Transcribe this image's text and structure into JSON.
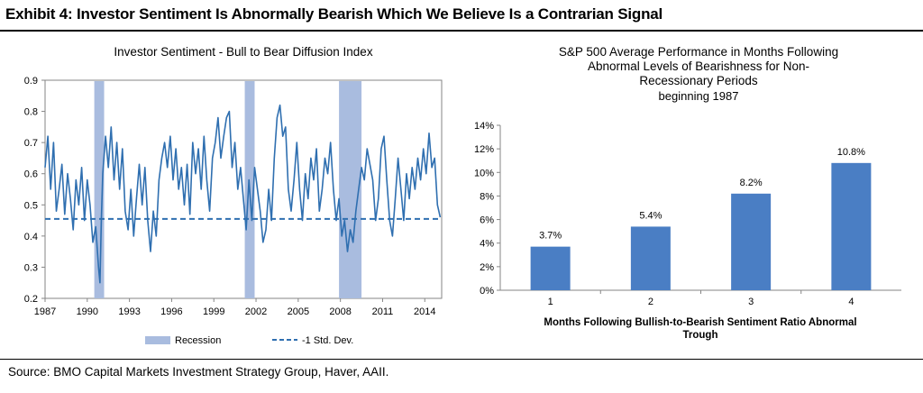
{
  "exhibit_title": "Exhibit 4: Investor Sentiment Is Abnormally Bearish Which We Believe Is a Contrarian Signal",
  "source": "Source: BMO Capital Markets Investment Strategy Group, Haver, AAII.",
  "colors": {
    "line": "#2f6fb0",
    "recession": "#a9bcdf",
    "bar": "#4a7ec4",
    "axis": "#868686",
    "grid": "#d9d9d9"
  },
  "chart_data": [
    {
      "type": "line",
      "title": "Investor Sentiment - Bull to Bear Diffusion Index",
      "x_ticks": [
        "1987",
        "1990",
        "1993",
        "1996",
        "1999",
        "2002",
        "2005",
        "2008",
        "2011",
        "2014"
      ],
      "y_ticks": [
        "0.2",
        "0.3",
        "0.4",
        "0.5",
        "0.6",
        "0.7",
        "0.8",
        "0.9"
      ],
      "xlim": [
        1987,
        2015.2
      ],
      "ylim": [
        0.2,
        0.9
      ],
      "legend": [
        {
          "key": "recession",
          "label": "Recession"
        },
        {
          "key": "std_dev",
          "label": "-1 Std. Dev."
        }
      ],
      "std_dev_value": 0.455,
      "recessions": [
        [
          1990.5,
          1991.2
        ],
        [
          2001.2,
          2001.9
        ],
        [
          2007.9,
          2009.5
        ]
      ],
      "series_points": [
        [
          1987.0,
          0.62
        ],
        [
          1987.2,
          0.72
        ],
        [
          1987.4,
          0.55
        ],
        [
          1987.6,
          0.7
        ],
        [
          1987.8,
          0.48
        ],
        [
          1988.0,
          0.55
        ],
        [
          1988.2,
          0.63
        ],
        [
          1988.4,
          0.47
        ],
        [
          1988.6,
          0.6
        ],
        [
          1988.8,
          0.52
        ],
        [
          1989.0,
          0.42
        ],
        [
          1989.2,
          0.58
        ],
        [
          1989.4,
          0.5
        ],
        [
          1989.6,
          0.62
        ],
        [
          1989.8,
          0.45
        ],
        [
          1990.0,
          0.58
        ],
        [
          1990.2,
          0.5
        ],
        [
          1990.4,
          0.38
        ],
        [
          1990.6,
          0.43
        ],
        [
          1990.8,
          0.3
        ],
        [
          1990.9,
          0.25
        ],
        [
          1991.0,
          0.45
        ],
        [
          1991.1,
          0.6
        ],
        [
          1991.3,
          0.72
        ],
        [
          1991.5,
          0.62
        ],
        [
          1991.7,
          0.75
        ],
        [
          1991.9,
          0.58
        ],
        [
          1992.1,
          0.7
        ],
        [
          1992.3,
          0.55
        ],
        [
          1992.5,
          0.68
        ],
        [
          1992.7,
          0.48
        ],
        [
          1992.9,
          0.42
        ],
        [
          1993.1,
          0.55
        ],
        [
          1993.3,
          0.4
        ],
        [
          1993.5,
          0.52
        ],
        [
          1993.7,
          0.63
        ],
        [
          1993.9,
          0.5
        ],
        [
          1994.1,
          0.62
        ],
        [
          1994.3,
          0.45
        ],
        [
          1994.5,
          0.35
        ],
        [
          1994.7,
          0.48
        ],
        [
          1994.9,
          0.4
        ],
        [
          1995.1,
          0.58
        ],
        [
          1995.3,
          0.65
        ],
        [
          1995.5,
          0.7
        ],
        [
          1995.7,
          0.62
        ],
        [
          1995.9,
          0.72
        ],
        [
          1996.1,
          0.58
        ],
        [
          1996.3,
          0.68
        ],
        [
          1996.5,
          0.55
        ],
        [
          1996.7,
          0.62
        ],
        [
          1996.9,
          0.5
        ],
        [
          1997.1,
          0.63
        ],
        [
          1997.3,
          0.47
        ],
        [
          1997.5,
          0.7
        ],
        [
          1997.7,
          0.6
        ],
        [
          1997.9,
          0.68
        ],
        [
          1998.1,
          0.55
        ],
        [
          1998.3,
          0.72
        ],
        [
          1998.5,
          0.58
        ],
        [
          1998.7,
          0.48
        ],
        [
          1998.9,
          0.65
        ],
        [
          1999.1,
          0.7
        ],
        [
          1999.3,
          0.78
        ],
        [
          1999.5,
          0.65
        ],
        [
          1999.7,
          0.72
        ],
        [
          1999.9,
          0.78
        ],
        [
          2000.1,
          0.8
        ],
        [
          2000.3,
          0.62
        ],
        [
          2000.5,
          0.7
        ],
        [
          2000.7,
          0.55
        ],
        [
          2000.9,
          0.62
        ],
        [
          2001.1,
          0.52
        ],
        [
          2001.3,
          0.42
        ],
        [
          2001.5,
          0.58
        ],
        [
          2001.7,
          0.45
        ],
        [
          2001.9,
          0.62
        ],
        [
          2002.1,
          0.55
        ],
        [
          2002.3,
          0.48
        ],
        [
          2002.5,
          0.38
        ],
        [
          2002.7,
          0.42
        ],
        [
          2002.9,
          0.55
        ],
        [
          2003.1,
          0.45
        ],
        [
          2003.3,
          0.65
        ],
        [
          2003.5,
          0.78
        ],
        [
          2003.7,
          0.82
        ],
        [
          2003.9,
          0.72
        ],
        [
          2004.1,
          0.75
        ],
        [
          2004.3,
          0.55
        ],
        [
          2004.5,
          0.48
        ],
        [
          2004.7,
          0.58
        ],
        [
          2004.9,
          0.7
        ],
        [
          2005.1,
          0.55
        ],
        [
          2005.3,
          0.45
        ],
        [
          2005.5,
          0.6
        ],
        [
          2005.7,
          0.52
        ],
        [
          2005.9,
          0.65
        ],
        [
          2006.1,
          0.58
        ],
        [
          2006.3,
          0.68
        ],
        [
          2006.5,
          0.48
        ],
        [
          2006.7,
          0.55
        ],
        [
          2006.9,
          0.65
        ],
        [
          2007.1,
          0.6
        ],
        [
          2007.3,
          0.7
        ],
        [
          2007.5,
          0.55
        ],
        [
          2007.7,
          0.45
        ],
        [
          2007.9,
          0.52
        ],
        [
          2008.1,
          0.4
        ],
        [
          2008.3,
          0.45
        ],
        [
          2008.5,
          0.35
        ],
        [
          2008.7,
          0.42
        ],
        [
          2008.9,
          0.38
        ],
        [
          2009.1,
          0.48
        ],
        [
          2009.3,
          0.55
        ],
        [
          2009.5,
          0.62
        ],
        [
          2009.7,
          0.58
        ],
        [
          2009.9,
          0.68
        ],
        [
          2010.1,
          0.63
        ],
        [
          2010.3,
          0.58
        ],
        [
          2010.5,
          0.45
        ],
        [
          2010.7,
          0.52
        ],
        [
          2010.9,
          0.68
        ],
        [
          2011.1,
          0.72
        ],
        [
          2011.3,
          0.58
        ],
        [
          2011.5,
          0.45
        ],
        [
          2011.7,
          0.4
        ],
        [
          2011.9,
          0.52
        ],
        [
          2012.1,
          0.65
        ],
        [
          2012.3,
          0.55
        ],
        [
          2012.5,
          0.45
        ],
        [
          2012.7,
          0.6
        ],
        [
          2012.9,
          0.52
        ],
        [
          2013.1,
          0.62
        ],
        [
          2013.3,
          0.55
        ],
        [
          2013.5,
          0.65
        ],
        [
          2013.7,
          0.58
        ],
        [
          2013.9,
          0.68
        ],
        [
          2014.1,
          0.6
        ],
        [
          2014.3,
          0.73
        ],
        [
          2014.5,
          0.62
        ],
        [
          2014.7,
          0.65
        ],
        [
          2014.9,
          0.5
        ],
        [
          2015.1,
          0.46
        ]
      ]
    },
    {
      "type": "bar",
      "title_lines": [
        "S&P 500 Average Performance in Months Following",
        "Abnormal Levels of Bearishness for Non-",
        "Recessionary Periods"
      ],
      "subtitle": "beginning 1987",
      "categories": [
        "1",
        "2",
        "3",
        "4"
      ],
      "values": [
        3.7,
        5.4,
        8.2,
        10.8
      ],
      "data_labels": [
        "3.7%",
        "5.4%",
        "8.2%",
        "10.8%"
      ],
      "y_ticks": [
        "0%",
        "2%",
        "4%",
        "6%",
        "8%",
        "10%",
        "12%",
        "14%"
      ],
      "ylim": [
        0,
        14
      ],
      "xlabel_lines": [
        "Months Following Bullish-to-Bearish Sentiment Ratio Abnormal",
        "Trough"
      ]
    }
  ]
}
